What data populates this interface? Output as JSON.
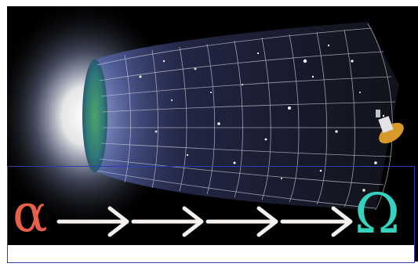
{
  "image": {
    "description_icons": [
      "cosmic-microwave-background-icon",
      "expanding-universe-funnel-icon",
      "satellite-probe-icon"
    ]
  },
  "sequence": {
    "start_symbol": "α",
    "end_symbol": "Ω",
    "arrow_count": 4,
    "start_color": "#e8604a",
    "end_color": "#36d2c0",
    "arrow_color": "#f5f1ee"
  },
  "colors": {
    "background": "#000000",
    "band_border": "#2b3fb0",
    "grid": "#c9c9d6",
    "glow": "#ffffff",
    "cmb_green": "#3a8f5a"
  }
}
